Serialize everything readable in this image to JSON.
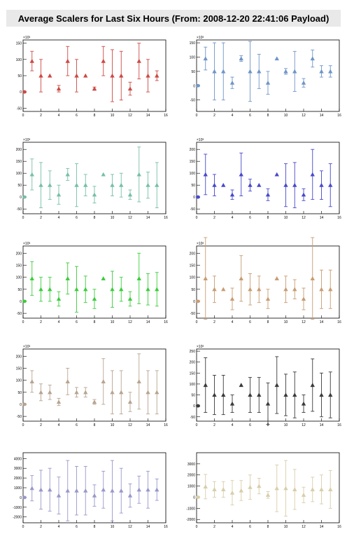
{
  "title": "Average Scalers for Last Six Hours (From: 2008-12-20 22:41:06 Payload)",
  "chart_data": [
    {
      "type": "scatter",
      "color": "#cc4a44",
      "exponent": "×10³",
      "xlim": [
        0,
        16
      ],
      "ylim": [
        -60,
        160
      ],
      "xticks": [
        0,
        2,
        4,
        6,
        8,
        10,
        12,
        14,
        16
      ],
      "yticks": [
        -50,
        0,
        50,
        100,
        150
      ],
      "x": [
        0,
        1,
        2,
        3,
        4,
        5,
        6,
        7,
        8,
        9,
        10,
        11,
        12,
        13,
        14,
        15
      ],
      "y": [
        0,
        95,
        50,
        50,
        10,
        95,
        50,
        50,
        10,
        95,
        50,
        50,
        10,
        95,
        50,
        50
      ],
      "err": [
        0,
        30,
        50,
        0,
        10,
        45,
        50,
        0,
        5,
        45,
        80,
        75,
        20,
        55,
        50,
        15
      ]
    },
    {
      "type": "scatter",
      "color": "#6f95c8",
      "exponent": "×10³",
      "xlim": [
        0,
        16
      ],
      "ylim": [
        -90,
        160
      ],
      "xticks": [
        0,
        2,
        4,
        6,
        8,
        10,
        12,
        14,
        16
      ],
      "yticks": [
        -50,
        0,
        50,
        100,
        150
      ],
      "x": [
        0,
        1,
        2,
        3,
        4,
        5,
        6,
        7,
        8,
        9,
        10,
        11,
        12,
        13,
        14,
        15
      ],
      "y": [
        0,
        95,
        50,
        50,
        10,
        95,
        50,
        50,
        10,
        95,
        50,
        50,
        10,
        95,
        50,
        50
      ],
      "err": [
        0,
        40,
        100,
        100,
        20,
        10,
        105,
        60,
        40,
        0,
        10,
        70,
        15,
        30,
        20,
        20
      ]
    },
    {
      "type": "scatter",
      "color": "#76c0a4",
      "exponent": "×10³",
      "xlim": [
        0,
        16
      ],
      "ylim": [
        -70,
        230
      ],
      "xticks": [
        0,
        2,
        4,
        6,
        8,
        10,
        12,
        14,
        16
      ],
      "yticks": [
        -50,
        0,
        50,
        100,
        150,
        200
      ],
      "x": [
        0,
        1,
        2,
        3,
        4,
        5,
        6,
        7,
        8,
        9,
        10,
        11,
        12,
        13,
        14,
        15
      ],
      "y": [
        0,
        95,
        50,
        50,
        10,
        95,
        50,
        50,
        10,
        95,
        50,
        50,
        10,
        95,
        50,
        50
      ],
      "err": [
        0,
        65,
        95,
        60,
        40,
        25,
        90,
        45,
        35,
        0,
        45,
        50,
        20,
        115,
        55,
        95
      ]
    },
    {
      "type": "scatter",
      "color": "#4848cc",
      "exponent": "×10³",
      "xlim": [
        0,
        16
      ],
      "ylim": [
        -70,
        230
      ],
      "xticks": [
        0,
        2,
        4,
        6,
        8,
        10,
        12,
        14,
        16
      ],
      "yticks": [
        -50,
        0,
        50,
        100,
        150,
        200
      ],
      "x": [
        0,
        1,
        2,
        3,
        4,
        5,
        6,
        7,
        8,
        9,
        10,
        11,
        12,
        13,
        14,
        15
      ],
      "y": [
        0,
        95,
        50,
        50,
        10,
        95,
        50,
        50,
        10,
        95,
        50,
        50,
        10,
        95,
        50,
        50
      ],
      "err": [
        0,
        85,
        45,
        0,
        20,
        90,
        25,
        0,
        25,
        0,
        90,
        95,
        25,
        105,
        60,
        90
      ]
    },
    {
      "type": "scatter",
      "color": "#3ccc3c",
      "exponent": "×10³",
      "xlim": [
        0,
        16
      ],
      "ylim": [
        -70,
        230
      ],
      "xticks": [
        0,
        2,
        4,
        6,
        8,
        10,
        12,
        14,
        16
      ],
      "yticks": [
        -50,
        0,
        50,
        100,
        150,
        200
      ],
      "x": [
        0,
        1,
        2,
        3,
        4,
        5,
        6,
        7,
        8,
        9,
        10,
        11,
        12,
        13,
        14,
        15
      ],
      "y": [
        0,
        95,
        50,
        50,
        10,
        95,
        50,
        50,
        10,
        95,
        50,
        50,
        10,
        95,
        50,
        50
      ],
      "err": [
        0,
        70,
        50,
        50,
        30,
        65,
        95,
        55,
        40,
        0,
        75,
        50,
        30,
        105,
        65,
        70
      ]
    },
    {
      "type": "scatter",
      "color": "#c89c72",
      "exponent": "×10³",
      "xlim": [
        0,
        16
      ],
      "ylim": [
        -70,
        230
      ],
      "xticks": [
        0,
        2,
        4,
        6,
        8,
        10,
        12,
        14,
        16
      ],
      "yticks": [
        -50,
        0,
        50,
        100,
        150,
        200
      ],
      "x": [
        0,
        1,
        2,
        3,
        4,
        5,
        6,
        7,
        8,
        9,
        10,
        11,
        12,
        13,
        14,
        15
      ],
      "y": [
        0,
        95,
        50,
        50,
        10,
        95,
        50,
        50,
        10,
        95,
        50,
        50,
        10,
        95,
        50,
        50
      ],
      "err": [
        0,
        170,
        55,
        0,
        45,
        95,
        65,
        55,
        40,
        0,
        55,
        40,
        45,
        170,
        80,
        80
      ]
    },
    {
      "type": "scatter",
      "color": "#b8a490",
      "exponent": "×10³",
      "xlim": [
        0,
        16
      ],
      "ylim": [
        -70,
        230
      ],
      "xticks": [
        0,
        2,
        4,
        6,
        8,
        10,
        12,
        14,
        16
      ],
      "yticks": [
        -50,
        0,
        50,
        100,
        150,
        200
      ],
      "x": [
        0,
        1,
        2,
        3,
        4,
        5,
        6,
        7,
        8,
        9,
        10,
        11,
        12,
        13,
        14,
        15
      ],
      "y": [
        0,
        95,
        50,
        50,
        10,
        95,
        50,
        50,
        10,
        95,
        50,
        50,
        10,
        95,
        50,
        50
      ],
      "err": [
        0,
        45,
        35,
        30,
        15,
        55,
        20,
        20,
        10,
        95,
        90,
        90,
        40,
        115,
        90,
        90
      ]
    },
    {
      "type": "scatter",
      "color": "#3a3a3a",
      "exponent": "×10³",
      "xlim": [
        0,
        16
      ],
      "ylim": [
        -70,
        260
      ],
      "xticks": [
        0,
        2,
        4,
        6,
        8,
        10,
        12,
        14,
        16
      ],
      "yticks": [
        -50,
        0,
        50,
        100,
        150,
        200,
        250
      ],
      "x": [
        0,
        1,
        2,
        3,
        4,
        5,
        6,
        7,
        8,
        9,
        10,
        11,
        12,
        13,
        14,
        15
      ],
      "y": [
        0,
        95,
        50,
        50,
        10,
        95,
        50,
        50,
        10,
        95,
        50,
        50,
        10,
        95,
        50,
        50
      ],
      "err": [
        0,
        125,
        90,
        90,
        40,
        0,
        80,
        80,
        95,
        130,
        95,
        105,
        40,
        120,
        100,
        105
      ]
    },
    {
      "type": "scatter",
      "color": "#9898cc",
      "xlim": [
        0,
        16
      ],
      "ylim": [
        -2600,
        4600
      ],
      "xticks": [
        0,
        2,
        4,
        6,
        8,
        10,
        12,
        14,
        16
      ],
      "yticks": [
        -2000,
        -1000,
        0,
        1000,
        2000,
        3000,
        4000
      ],
      "x": [
        0,
        1,
        2,
        3,
        4,
        5,
        6,
        7,
        8,
        9,
        10,
        11,
        12,
        13,
        14,
        15
      ],
      "y": [
        0,
        950,
        800,
        800,
        200,
        700,
        700,
        700,
        200,
        800,
        700,
        700,
        200,
        800,
        800,
        800
      ],
      "err": [
        0,
        1300,
        2000,
        2200,
        1900,
        3100,
        2500,
        2500,
        1100,
        1900,
        3100,
        2300,
        1200,
        1400,
        1900,
        1100
      ]
    },
    {
      "type": "scatter",
      "color": "#d8ceaa",
      "xlim": [
        0,
        16
      ],
      "ylim": [
        -2300,
        4000
      ],
      "xticks": [
        0,
        2,
        4,
        6,
        8,
        10,
        12,
        14,
        16
      ],
      "yticks": [
        -2000,
        -1000,
        0,
        1000,
        2000,
        3000
      ],
      "x": [
        0,
        1,
        2,
        3,
        4,
        5,
        6,
        7,
        8,
        9,
        10,
        11,
        12,
        13,
        14,
        15
      ],
      "y": [
        0,
        950,
        700,
        700,
        400,
        600,
        900,
        1000,
        200,
        800,
        800,
        700,
        200,
        700,
        700,
        700
      ],
      "err": [
        0,
        1100,
        700,
        700,
        1100,
        900,
        1100,
        700,
        300,
        2100,
        2500,
        1800,
        700,
        1100,
        1300,
        1700
      ]
    }
  ]
}
